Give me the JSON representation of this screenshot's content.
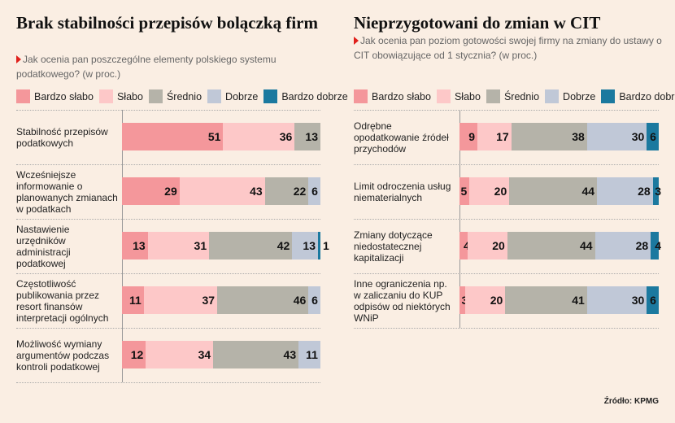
{
  "colors": {
    "bardzo_slabo": "#f4979b",
    "slabo": "#fdc8c8",
    "srednio": "#b5b3a9",
    "dobrze": "#c0c8d7",
    "bardzo_dobrze": "#1b799f",
    "background": "#faeee3"
  },
  "chart_data": [
    {
      "type": "bar",
      "stacked": true,
      "orientation": "horizontal",
      "title": "Brak stabilności przepisów bolączką firm",
      "subtitle": "Jak ocenia pan poszczególne elementy polskiego systemu podatkowego? (w proc.)",
      "legend": [
        "Bardzo słabo",
        "Słabo",
        "Średnio",
        "Dobrze",
        "Bardzo dobrze"
      ],
      "categories": [
        "Stabilność przepisów podatkowych",
        "Wcześniejsze informowanie o planowanych zmianach w podatkach",
        "Nastawienie urzędników administracji podatkowej",
        "Częstotliwość publikowania przez resort finansów interpretacji ogólnych",
        "Możliwość wymiany argumentów podczas kontroli podatkowej"
      ],
      "values": [
        [
          51,
          36,
          13,
          0,
          0
        ],
        [
          29,
          43,
          22,
          6,
          0
        ],
        [
          13,
          31,
          42,
          13,
          1
        ],
        [
          11,
          37,
          46,
          6,
          0
        ],
        [
          12,
          34,
          43,
          11,
          0
        ]
      ],
      "xlim": [
        0,
        100
      ]
    },
    {
      "type": "bar",
      "stacked": true,
      "orientation": "horizontal",
      "title": "Nieprzygotowani do zmian w CIT",
      "subtitle": "Jak ocenia pan poziom gotowości swojej firmy na zmiany do ustawy o CIT obowiązujące od 1 stycznia? (w proc.)",
      "legend": [
        "Bardzo słabo",
        "Słabo",
        "Średnio",
        "Dobrze",
        "Bardzo dobrze"
      ],
      "categories": [
        "Odrębne opodatkowanie źródeł przychodów",
        "Limit odroczenia usług niematerialnych",
        "Zmiany dotyczące niedostatecznej kapitalizacji",
        "Inne ograniczenia np. w zaliczaniu do KUP odpisów od niektórych WNiP"
      ],
      "values": [
        [
          9,
          17,
          38,
          30,
          6
        ],
        [
          5,
          20,
          44,
          28,
          3
        ],
        [
          4,
          20,
          44,
          28,
          4
        ],
        [
          3,
          20,
          41,
          30,
          6
        ]
      ],
      "xlim": [
        0,
        100
      ]
    }
  ],
  "source": "Źródło: KPMG"
}
